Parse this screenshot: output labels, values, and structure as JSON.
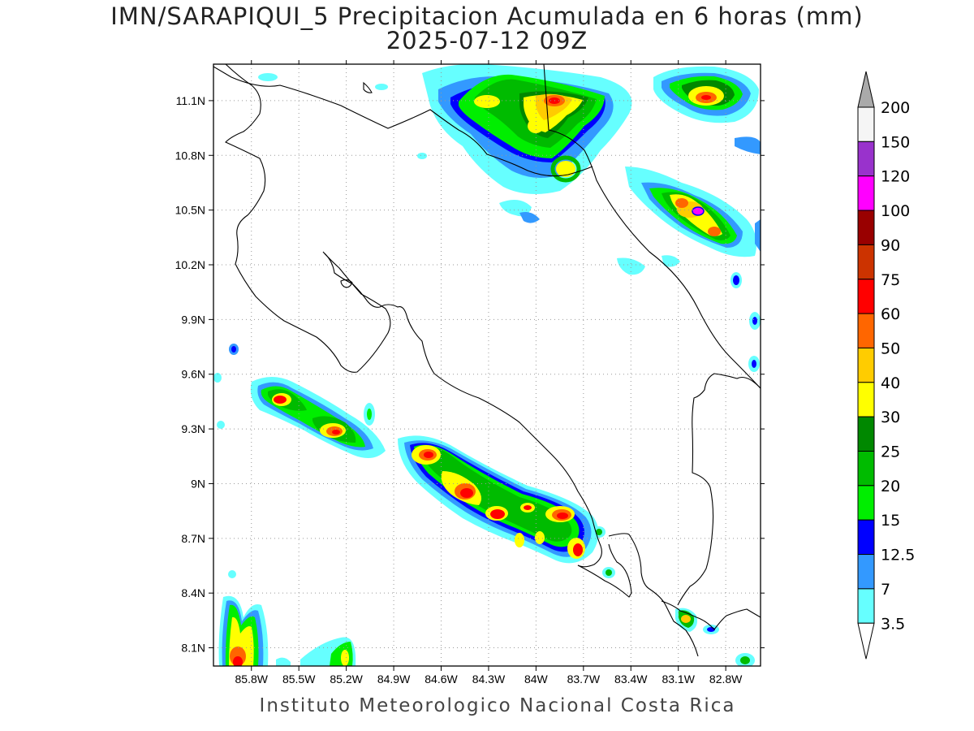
{
  "title": "IMN/SARAPIQUI_5 Precipitacion Acumulada en 6 horas (mm)",
  "subtitle": "2025-07-12 09Z",
  "footer": "Instituto Meteorologico Nacional Costa Rica",
  "map": {
    "lon_range": [
      -86.04,
      -82.58
    ],
    "lat_range": [
      8.0,
      11.3
    ],
    "lon_ticks": [
      "85.8W",
      "85.5W",
      "85.2W",
      "84.9W",
      "84.6W",
      "84.3W",
      "84W",
      "83.7W",
      "83.4W",
      "83.1W",
      "82.8W"
    ],
    "lon_values": [
      -85.8,
      -85.5,
      -85.2,
      -84.9,
      -84.6,
      -84.3,
      -84.0,
      -83.7,
      -83.4,
      -83.1,
      -82.8
    ],
    "lat_ticks": [
      "8.1N",
      "8.4N",
      "8.7N",
      "9N",
      "9.3N",
      "9.6N",
      "9.9N",
      "10.2N",
      "10.5N",
      "10.8N",
      "11.1N"
    ],
    "lat_values": [
      8.1,
      8.4,
      8.7,
      9.0,
      9.3,
      9.6,
      9.9,
      10.2,
      10.5,
      10.8,
      11.1
    ],
    "grid": true
  },
  "colorbar": {
    "labels": [
      "200",
      "150",
      "120",
      "100",
      "90",
      "75",
      "60",
      "50",
      "40",
      "30",
      "25",
      "20",
      "15",
      "12.5",
      "7",
      "3.5"
    ],
    "colors": [
      "#f5f5f5",
      "#9932cc",
      "#ff00ff",
      "#990000",
      "#cc3300",
      "#ff0000",
      "#ff6600",
      "#ffcc00",
      "#ffff00",
      "#008800",
      "#00bb00",
      "#00ee00",
      "#0000ff",
      "#3399ff",
      "#66ffff"
    ],
    "over_color": "#aaaaaa",
    "under_color": "#ffffff"
  }
}
